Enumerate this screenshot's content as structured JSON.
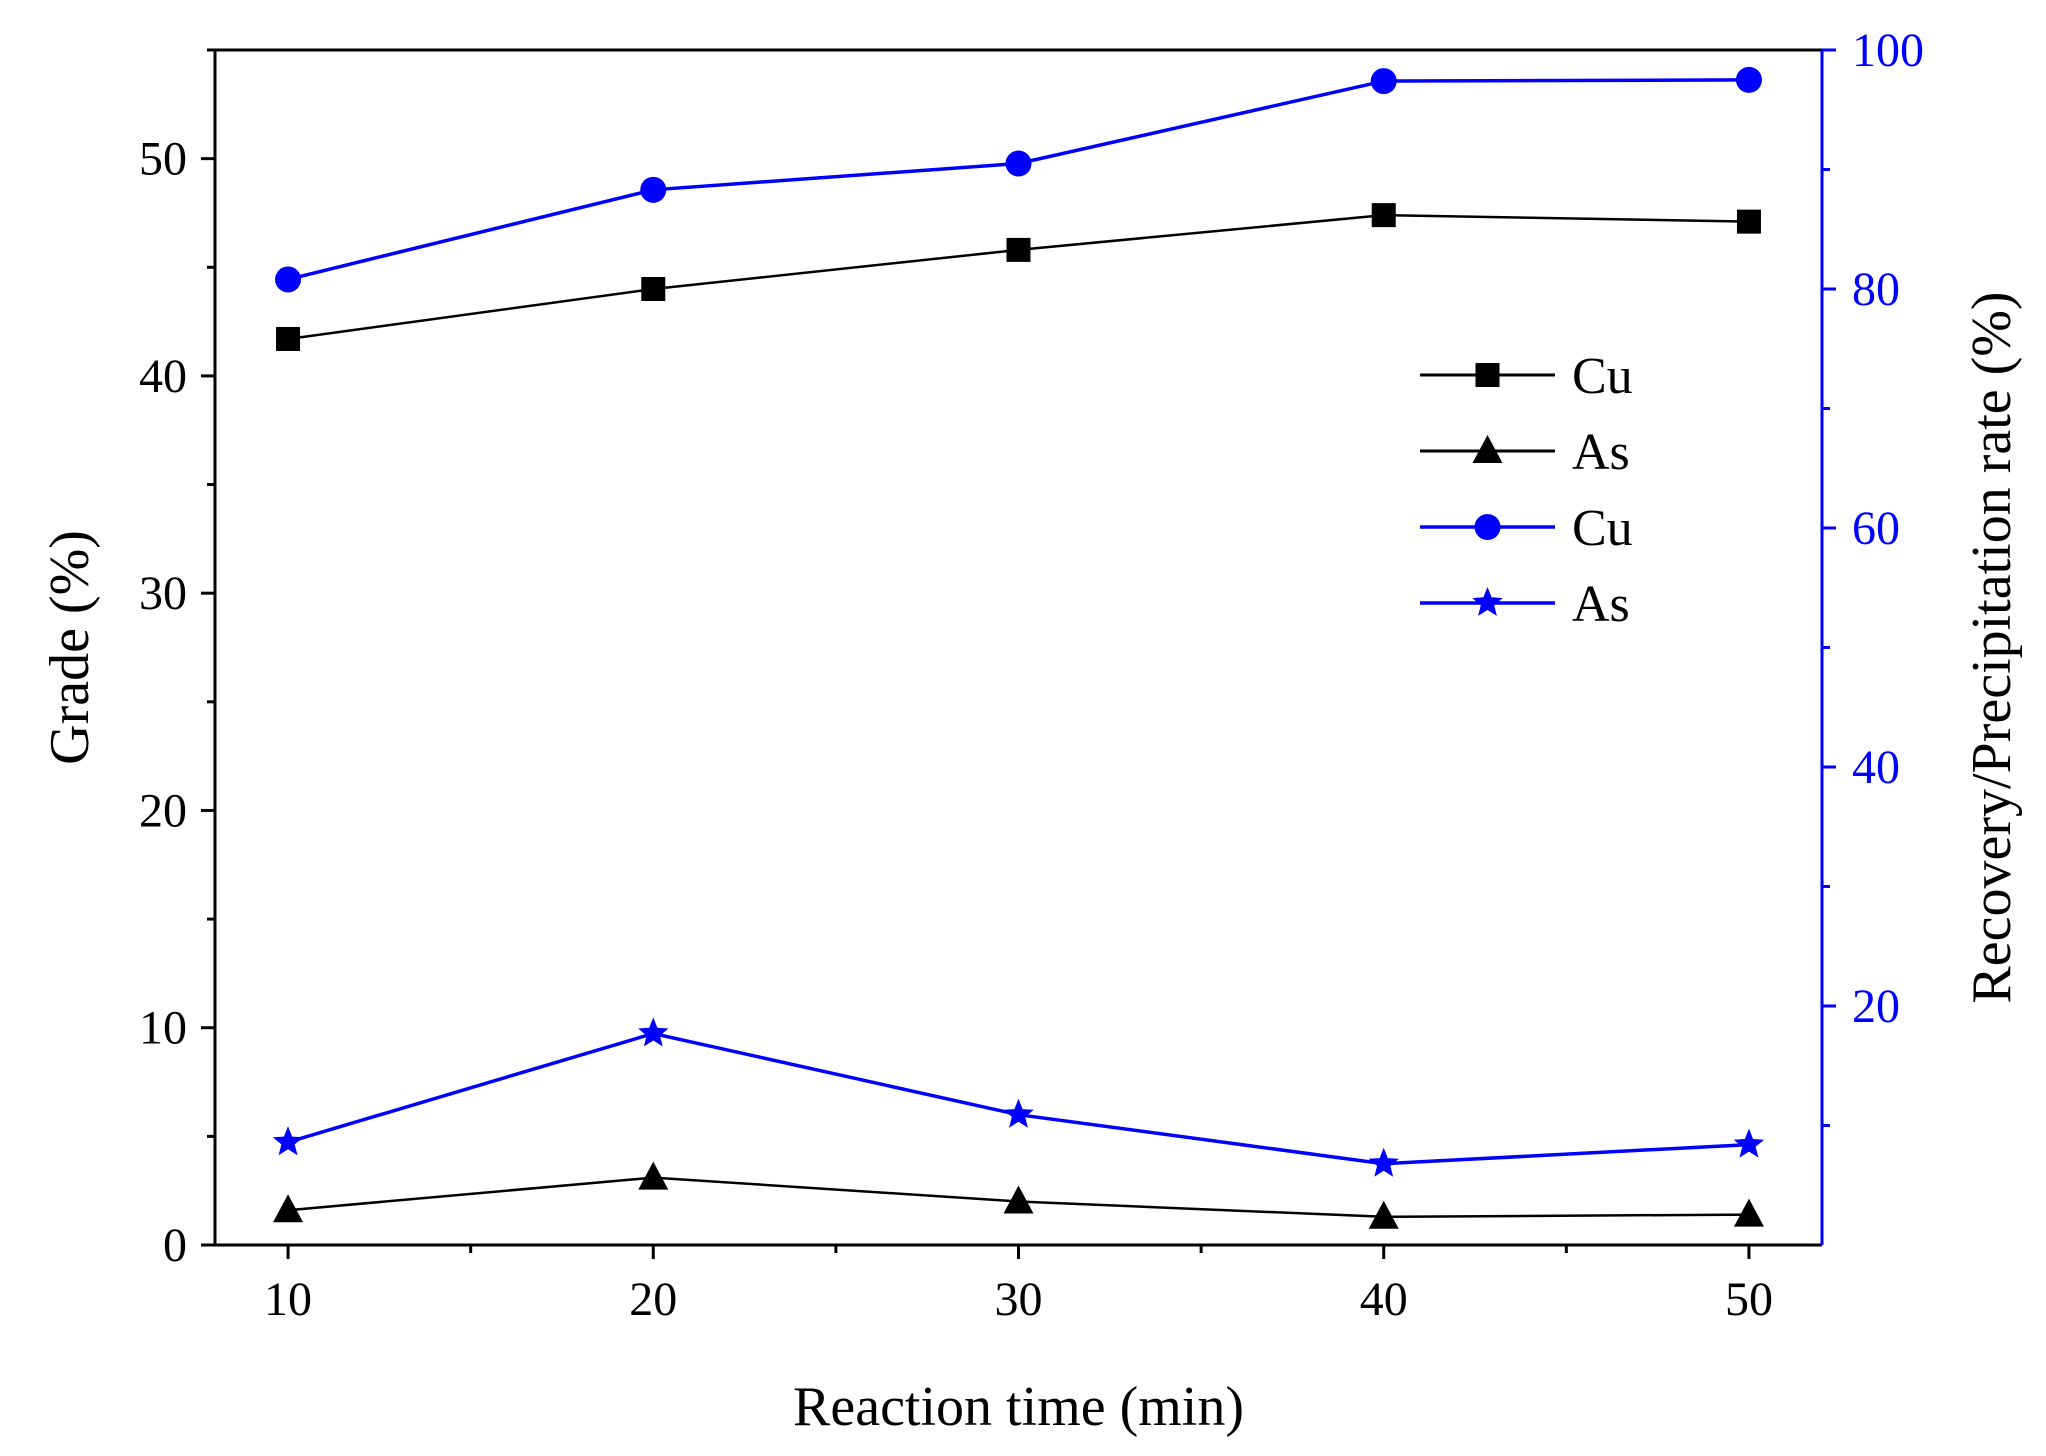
{
  "chart_data": {
    "type": "line",
    "x": [
      10,
      20,
      30,
      40,
      50
    ],
    "xlabel": "Reaction time (min)",
    "ylabel_left": "Grade (%)",
    "ylabel_right": "Recovery/Precipitation rate (%)",
    "xlim": [
      8,
      52
    ],
    "ylim_left": [
      0,
      55
    ],
    "ylim_right": [
      0,
      100
    ],
    "x_ticks": [
      10,
      20,
      30,
      40,
      50
    ],
    "y_ticks_left": [
      0,
      10,
      20,
      30,
      40,
      50
    ],
    "y_ticks_right": [
      20,
      40,
      60,
      80,
      100
    ],
    "series": [
      {
        "name": "Cu",
        "axis": "left",
        "color": "#000000",
        "marker": "square",
        "values": [
          41.7,
          44.0,
          45.8,
          47.4,
          47.1
        ]
      },
      {
        "name": "As",
        "axis": "left",
        "color": "#000000",
        "marker": "triangle",
        "values": [
          1.6,
          3.1,
          2.0,
          1.3,
          1.4
        ]
      },
      {
        "name": "Cu",
        "axis": "right",
        "color": "#0000ff",
        "marker": "circle",
        "values": [
          80.8,
          88.3,
          90.5,
          97.4,
          97.5
        ]
      },
      {
        "name": "As",
        "axis": "right",
        "color": "#0000ff",
        "marker": "star",
        "values": [
          8.6,
          17.7,
          10.9,
          6.8,
          8.4
        ]
      }
    ],
    "legend_position": "upper-right inside"
  }
}
